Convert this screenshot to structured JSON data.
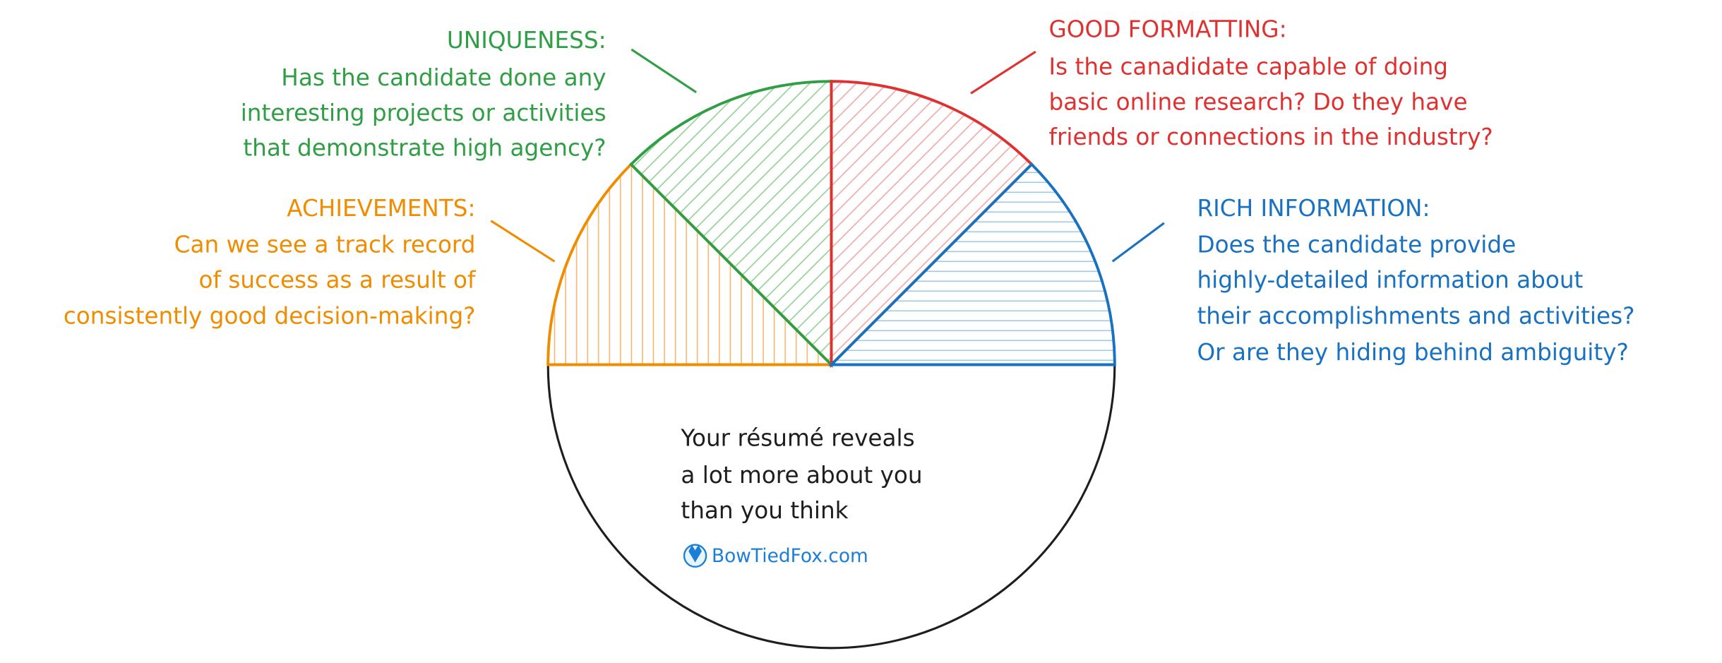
{
  "segments": [
    {
      "heading": "UNIQUENESS:",
      "lines": [
        "Has the candidate done any",
        "interesting projects or activities",
        "that demonstrate high agency?"
      ]
    },
    {
      "heading": "ACHIEVEMENTS:",
      "lines": [
        "Can we see  a track record",
        "of success as a result of",
        "consistently good decision-making?"
      ]
    },
    {
      "heading": "GOOD FORMATTING:",
      "lines": [
        "Is the canadidate capable of doing",
        "basic online research? Do they have",
        "friends or connections in the industry?"
      ]
    },
    {
      "heading": "RICH INFORMATION:",
      "lines": [
        "Does the candidate provide",
        "highly-detailed information about",
        "their accomplishments and activities?",
        "Or are they hiding behind ambiguity?"
      ]
    }
  ],
  "center_text": [
    "Your résumé reveals",
    "a lot more about you",
    "than you think"
  ],
  "brand": "BowTiedFox.com"
}
